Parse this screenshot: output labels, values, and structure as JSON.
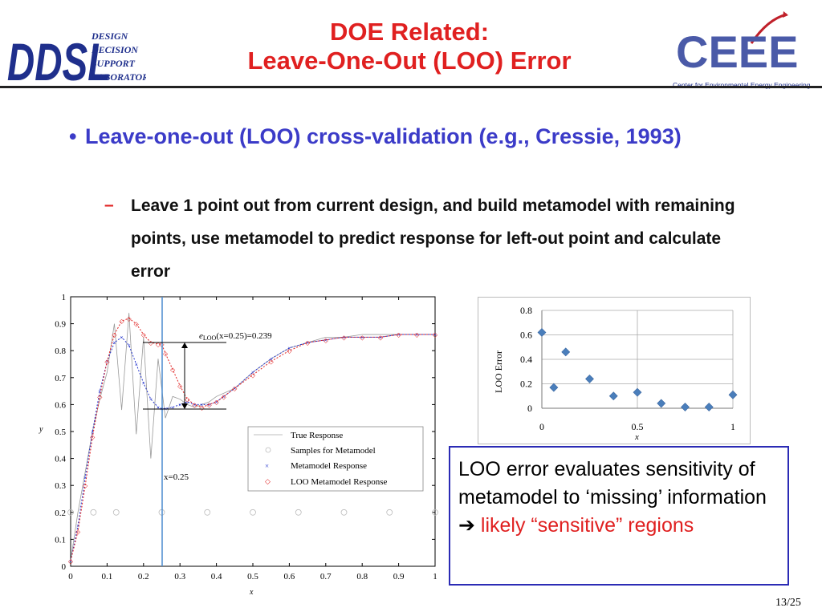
{
  "header": {
    "title_line1": "DOE Related:",
    "title_line2": "Leave-One-Out (LOO) Error",
    "left_logo": {
      "main": "DDSL",
      "lines": [
        "DESIGN",
        "DECISION",
        "SUPPORT",
        "LABORATORY"
      ]
    },
    "right_logo": {
      "main": "CEEE",
      "tagline": "Center for Environmental Energy Engineering"
    }
  },
  "content": {
    "bullet": "Leave-one-out (LOO) cross-validation (e.g., Cressie, 1993)",
    "sub_bullet_marker": "–",
    "sub_bullet": "Leave 1 point out from current design, and build metamodel with remaining points, use metamodel to predict response for left-out point and calculate error"
  },
  "callout": {
    "text": "LOO error evaluates sensitivity of metamodel to ‘missing’ information",
    "arrow": "➔",
    "highlight": "likely “sensitive” regions"
  },
  "footer": {
    "page": "13/25"
  },
  "chart_data": [
    {
      "type": "line",
      "xlabel": "x",
      "ylabel": "y",
      "xlim": [
        0,
        1
      ],
      "ylim": [
        0,
        1
      ],
      "x_ticks": [
        "0",
        "0.1",
        "0.2",
        "0.3",
        "0.4",
        "0.5",
        "0.6",
        "0.7",
        "0.8",
        "0.9",
        "1"
      ],
      "y_ticks": [
        "0",
        "0.1",
        "0.2",
        "0.3",
        "0.4",
        "0.5",
        "0.6",
        "0.7",
        "0.8",
        "0.9",
        "1"
      ],
      "legend_position": "lower-right",
      "legend": [
        "True Response",
        "Samples for Metamodel",
        "Metamodel Response",
        "LOO Metamodel Response"
      ],
      "annotation_error": "e",
      "annotation_error_sub": "LOO",
      "annotation_error_rest": "(x=0.25)=0.239",
      "annotation_x": "x=0.25",
      "series": [
        {
          "name": "True Response",
          "x": [
            0,
            0.02,
            0.04,
            0.06,
            0.08,
            0.1,
            0.12,
            0.14,
            0.16,
            0.18,
            0.2,
            0.22,
            0.24,
            0.26,
            0.28,
            0.3,
            0.32,
            0.34,
            0.36,
            0.38,
            0.4,
            0.45,
            0.5,
            0.55,
            0.6,
            0.65,
            0.7,
            0.75,
            0.8,
            0.85,
            0.9,
            0.95,
            1
          ],
          "y": [
            0.02,
            0.2,
            0.35,
            0.5,
            0.62,
            0.72,
            0.9,
            0.58,
            0.94,
            0.49,
            0.85,
            0.4,
            0.77,
            0.55,
            0.63,
            0.62,
            0.6,
            0.59,
            0.6,
            0.61,
            0.63,
            0.66,
            0.72,
            0.77,
            0.81,
            0.83,
            0.85,
            0.85,
            0.86,
            0.86,
            0.86,
            0.86,
            0.86
          ]
        },
        {
          "name": "Samples for Metamodel",
          "x": [
            0,
            0.0625,
            0.125,
            0.25,
            0.375,
            0.5,
            0.625,
            0.75,
            0.875,
            1
          ],
          "y": [
            0.2,
            0.2,
            0.2,
            0.2,
            0.2,
            0.2,
            0.2,
            0.2,
            0.2,
            0.2
          ]
        },
        {
          "name": "Metamodel Response",
          "x": [
            0,
            0.02,
            0.04,
            0.06,
            0.08,
            0.1,
            0.12,
            0.14,
            0.16,
            0.18,
            0.2,
            0.22,
            0.24,
            0.25,
            0.26,
            0.28,
            0.3,
            0.32,
            0.34,
            0.36,
            0.38,
            0.4,
            0.42,
            0.45,
            0.5,
            0.55,
            0.6,
            0.65,
            0.7,
            0.75,
            0.8,
            0.85,
            0.9,
            0.95,
            1
          ],
          "y": [
            0.02,
            0.15,
            0.33,
            0.5,
            0.65,
            0.76,
            0.83,
            0.85,
            0.82,
            0.75,
            0.68,
            0.62,
            0.59,
            0.585,
            0.585,
            0.59,
            0.6,
            0.61,
            0.6,
            0.6,
            0.6,
            0.61,
            0.63,
            0.66,
            0.72,
            0.77,
            0.81,
            0.83,
            0.84,
            0.85,
            0.85,
            0.85,
            0.86,
            0.86,
            0.86
          ]
        },
        {
          "name": "LOO Metamodel Response",
          "x": [
            0,
            0.02,
            0.04,
            0.06,
            0.08,
            0.1,
            0.12,
            0.14,
            0.16,
            0.18,
            0.2,
            0.22,
            0.24,
            0.25,
            0.26,
            0.28,
            0.3,
            0.32,
            0.34,
            0.36,
            0.38,
            0.4,
            0.42,
            0.45,
            0.5,
            0.55,
            0.6,
            0.65,
            0.7,
            0.75,
            0.8,
            0.85,
            0.9,
            0.95,
            1
          ],
          "y": [
            0.02,
            0.13,
            0.3,
            0.48,
            0.63,
            0.76,
            0.86,
            0.91,
            0.92,
            0.9,
            0.86,
            0.83,
            0.825,
            0.824,
            0.79,
            0.73,
            0.67,
            0.62,
            0.6,
            0.59,
            0.6,
            0.61,
            0.63,
            0.66,
            0.71,
            0.76,
            0.8,
            0.83,
            0.84,
            0.85,
            0.85,
            0.85,
            0.86,
            0.86,
            0.86
          ]
        }
      ]
    },
    {
      "type": "scatter",
      "ylabel": "LOO Error",
      "xlabel": "x",
      "xlim": [
        0,
        1
      ],
      "ylim": [
        0,
        0.8
      ],
      "x_ticks": [
        "0",
        "0.5",
        "1"
      ],
      "y_ticks": [
        "0",
        "0.2",
        "0.4",
        "0.6",
        "0.8"
      ],
      "grid": true,
      "series": [
        {
          "x": [
            0,
            0.0625,
            0.125,
            0.25,
            0.375,
            0.5,
            0.625,
            0.75,
            0.875,
            1
          ],
          "y": [
            0.62,
            0.17,
            0.46,
            0.24,
            0.1,
            0.13,
            0.04,
            0.01,
            0.01,
            0.11
          ]
        }
      ]
    }
  ]
}
